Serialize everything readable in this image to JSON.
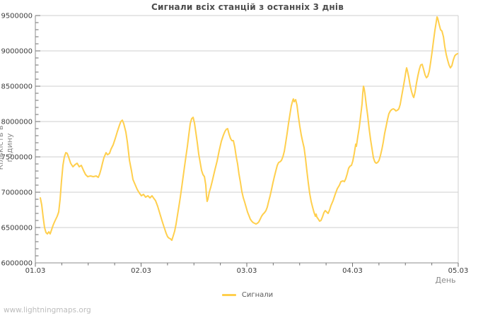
{
  "title": "Сигнали всіх станцій з останніх 3 днів",
  "axes": {
    "y_label": "Кількість в годину",
    "x_label": "День",
    "y_tick_labels": [
      "6000000",
      "6500000",
      "7000000",
      "7500000",
      "8000000",
      "8500000",
      "9000000",
      "9500000"
    ],
    "x_tick_labels": [
      "01.03",
      "02.03",
      "03.03",
      "04.03",
      "05.03"
    ]
  },
  "legend": {
    "label": "Сигнали",
    "color": "#FFCF4D"
  },
  "watermark": "www.lightningmaps.org",
  "colors": {
    "line": "#FFCF4D",
    "grid": "#CFCFCF",
    "axis": "#8C8C8C",
    "tick": "#6E6E6E",
    "tick_label": "#3C3C3C",
    "title": "#4D4D4D",
    "axis_title": "#8A8A8A",
    "legend_text": "#5A5A5A",
    "watermark": "#BCBCBC",
    "background": "#FFFFFF"
  },
  "chart_data": {
    "type": "line",
    "title": "Сигнали всіх станцій з останніх 3 днів",
    "xlabel": "День",
    "ylabel": "Кількість в годину",
    "x_unit": "days since 01.03 00:00",
    "y_unit": "signals per hour",
    "xlim": [
      0,
      4
    ],
    "ylim": [
      6000000,
      9500000
    ],
    "y_tick_interval": 500000,
    "y_minor_interval": 100000,
    "x_tick_interval": 1,
    "x_minor_interval": 0.25,
    "grid": "horizontal",
    "legend_position": "bottom-center",
    "x_tick_labels": [
      "01.03",
      "02.03",
      "03.03",
      "04.03",
      "05.03"
    ],
    "series": [
      {
        "name": "Сигнали",
        "color": "#FFCF4D",
        "value_scale": 1000000,
        "points": [
          [
            0.047,
            6.92
          ],
          [
            0.06,
            6.82
          ],
          [
            0.074,
            6.64
          ],
          [
            0.087,
            6.5
          ],
          [
            0.1,
            6.43
          ],
          [
            0.114,
            6.41
          ],
          [
            0.127,
            6.44
          ],
          [
            0.14,
            6.41
          ],
          [
            0.154,
            6.47
          ],
          [
            0.167,
            6.53
          ],
          [
            0.181,
            6.58
          ],
          [
            0.194,
            6.62
          ],
          [
            0.207,
            6.66
          ],
          [
            0.221,
            6.72
          ],
          [
            0.234,
            6.9
          ],
          [
            0.247,
            7.15
          ],
          [
            0.261,
            7.38
          ],
          [
            0.274,
            7.5
          ],
          [
            0.288,
            7.56
          ],
          [
            0.301,
            7.55
          ],
          [
            0.314,
            7.5
          ],
          [
            0.334,
            7.41
          ],
          [
            0.355,
            7.36
          ],
          [
            0.375,
            7.39
          ],
          [
            0.395,
            7.41
          ],
          [
            0.415,
            7.36
          ],
          [
            0.435,
            7.38
          ],
          [
            0.455,
            7.31
          ],
          [
            0.475,
            7.25
          ],
          [
            0.495,
            7.22
          ],
          [
            0.522,
            7.23
          ],
          [
            0.548,
            7.22
          ],
          [
            0.575,
            7.23
          ],
          [
            0.595,
            7.21
          ],
          [
            0.609,
            7.26
          ],
          [
            0.622,
            7.33
          ],
          [
            0.635,
            7.41
          ],
          [
            0.649,
            7.49
          ],
          [
            0.669,
            7.56
          ],
          [
            0.682,
            7.53
          ],
          [
            0.702,
            7.55
          ],
          [
            0.716,
            7.61
          ],
          [
            0.736,
            7.67
          ],
          [
            0.756,
            7.76
          ],
          [
            0.776,
            7.86
          ],
          [
            0.796,
            7.95
          ],
          [
            0.809,
            8.0
          ],
          [
            0.823,
            8.02
          ],
          [
            0.836,
            7.97
          ],
          [
            0.856,
            7.85
          ],
          [
            0.87,
            7.71
          ],
          [
            0.89,
            7.45
          ],
          [
            0.91,
            7.3
          ],
          [
            0.923,
            7.18
          ],
          [
            0.943,
            7.11
          ],
          [
            0.963,
            7.04
          ],
          [
            0.983,
            6.99
          ],
          [
            1.003,
            6.95
          ],
          [
            1.023,
            6.97
          ],
          [
            1.043,
            6.93
          ],
          [
            1.064,
            6.95
          ],
          [
            1.084,
            6.92
          ],
          [
            1.104,
            6.95
          ],
          [
            1.117,
            6.92
          ],
          [
            1.137,
            6.88
          ],
          [
            1.157,
            6.8
          ],
          [
            1.177,
            6.7
          ],
          [
            1.197,
            6.6
          ],
          [
            1.217,
            6.51
          ],
          [
            1.237,
            6.42
          ],
          [
            1.251,
            6.37
          ],
          [
            1.264,
            6.35
          ],
          [
            1.278,
            6.34
          ],
          [
            1.291,
            6.32
          ],
          [
            1.304,
            6.38
          ],
          [
            1.318,
            6.45
          ],
          [
            1.331,
            6.55
          ],
          [
            1.344,
            6.67
          ],
          [
            1.358,
            6.8
          ],
          [
            1.371,
            6.93
          ],
          [
            1.385,
            7.08
          ],
          [
            1.398,
            7.22
          ],
          [
            1.411,
            7.36
          ],
          [
            1.425,
            7.51
          ],
          [
            1.438,
            7.65
          ],
          [
            1.452,
            7.82
          ],
          [
            1.465,
            7.97
          ],
          [
            1.478,
            8.04
          ],
          [
            1.492,
            8.06
          ],
          [
            1.505,
            7.98
          ],
          [
            1.518,
            7.85
          ],
          [
            1.532,
            7.7
          ],
          [
            1.545,
            7.54
          ],
          [
            1.559,
            7.42
          ],
          [
            1.572,
            7.31
          ],
          [
            1.585,
            7.25
          ],
          [
            1.599,
            7.22
          ],
          [
            1.612,
            7.1
          ],
          [
            1.619,
            6.95
          ],
          [
            1.625,
            6.87
          ],
          [
            1.632,
            6.9
          ],
          [
            1.645,
            7.0
          ],
          [
            1.659,
            7.07
          ],
          [
            1.672,
            7.15
          ],
          [
            1.686,
            7.24
          ],
          [
            1.699,
            7.32
          ],
          [
            1.719,
            7.44
          ],
          [
            1.739,
            7.59
          ],
          [
            1.759,
            7.72
          ],
          [
            1.779,
            7.81
          ],
          [
            1.793,
            7.86
          ],
          [
            1.806,
            7.89
          ],
          [
            1.819,
            7.9
          ],
          [
            1.833,
            7.82
          ],
          [
            1.846,
            7.76
          ],
          [
            1.859,
            7.73
          ],
          [
            1.873,
            7.73
          ],
          [
            1.886,
            7.64
          ],
          [
            1.9,
            7.5
          ],
          [
            1.913,
            7.4
          ],
          [
            1.926,
            7.26
          ],
          [
            1.94,
            7.14
          ],
          [
            1.953,
            7.01
          ],
          [
            1.967,
            6.92
          ],
          [
            1.98,
            6.86
          ],
          [
            1.993,
            6.79
          ],
          [
            2.007,
            6.72
          ],
          [
            2.02,
            6.67
          ],
          [
            2.033,
            6.62
          ],
          [
            2.047,
            6.59
          ],
          [
            2.06,
            6.57
          ],
          [
            2.074,
            6.56
          ],
          [
            2.087,
            6.55
          ],
          [
            2.1,
            6.56
          ],
          [
            2.114,
            6.58
          ],
          [
            2.127,
            6.62
          ],
          [
            2.14,
            6.66
          ],
          [
            2.154,
            6.69
          ],
          [
            2.167,
            6.71
          ],
          [
            2.181,
            6.74
          ],
          [
            2.194,
            6.79
          ],
          [
            2.207,
            6.87
          ],
          [
            2.221,
            6.95
          ],
          [
            2.234,
            7.04
          ],
          [
            2.247,
            7.13
          ],
          [
            2.261,
            7.22
          ],
          [
            2.274,
            7.3
          ],
          [
            2.288,
            7.38
          ],
          [
            2.301,
            7.42
          ],
          [
            2.314,
            7.43
          ],
          [
            2.328,
            7.45
          ],
          [
            2.341,
            7.5
          ],
          [
            2.355,
            7.58
          ],
          [
            2.368,
            7.7
          ],
          [
            2.381,
            7.83
          ],
          [
            2.395,
            7.98
          ],
          [
            2.408,
            8.1
          ],
          [
            2.421,
            8.22
          ],
          [
            2.435,
            8.3
          ],
          [
            2.441,
            8.32
          ],
          [
            2.448,
            8.28
          ],
          [
            2.462,
            8.31
          ],
          [
            2.475,
            8.23
          ],
          [
            2.488,
            8.07
          ],
          [
            2.502,
            7.93
          ],
          [
            2.515,
            7.81
          ],
          [
            2.528,
            7.72
          ],
          [
            2.542,
            7.63
          ],
          [
            2.555,
            7.48
          ],
          [
            2.569,
            7.29
          ],
          [
            2.582,
            7.13
          ],
          [
            2.595,
            6.98
          ],
          [
            2.609,
            6.87
          ],
          [
            2.622,
            6.79
          ],
          [
            2.635,
            6.72
          ],
          [
            2.649,
            6.66
          ],
          [
            2.656,
            6.69
          ],
          [
            2.662,
            6.65
          ],
          [
            2.676,
            6.62
          ],
          [
            2.689,
            6.59
          ],
          [
            2.702,
            6.6
          ],
          [
            2.716,
            6.65
          ],
          [
            2.729,
            6.71
          ],
          [
            2.742,
            6.74
          ],
          [
            2.756,
            6.72
          ],
          [
            2.769,
            6.7
          ],
          [
            2.783,
            6.75
          ],
          [
            2.796,
            6.81
          ],
          [
            2.816,
            6.88
          ],
          [
            2.836,
            6.97
          ],
          [
            2.856,
            7.05
          ],
          [
            2.876,
            7.1
          ],
          [
            2.89,
            7.15
          ],
          [
            2.91,
            7.16
          ],
          [
            2.923,
            7.15
          ],
          [
            2.936,
            7.19
          ],
          [
            2.95,
            7.26
          ],
          [
            2.963,
            7.34
          ],
          [
            2.977,
            7.37
          ],
          [
            2.99,
            7.38
          ],
          [
            3.003,
            7.44
          ],
          [
            3.017,
            7.55
          ],
          [
            3.03,
            7.68
          ],
          [
            3.037,
            7.65
          ],
          [
            3.05,
            7.79
          ],
          [
            3.064,
            7.92
          ],
          [
            3.077,
            8.08
          ],
          [
            3.09,
            8.25
          ],
          [
            3.097,
            8.4
          ],
          [
            3.104,
            8.5
          ],
          [
            3.11,
            8.47
          ],
          [
            3.117,
            8.4
          ],
          [
            3.13,
            8.24
          ],
          [
            3.144,
            8.08
          ],
          [
            3.157,
            7.9
          ],
          [
            3.171,
            7.74
          ],
          [
            3.184,
            7.62
          ],
          [
            3.197,
            7.49
          ],
          [
            3.211,
            7.43
          ],
          [
            3.224,
            7.41
          ],
          [
            3.237,
            7.42
          ],
          [
            3.251,
            7.45
          ],
          [
            3.264,
            7.52
          ],
          [
            3.278,
            7.61
          ],
          [
            3.291,
            7.71
          ],
          [
            3.304,
            7.83
          ],
          [
            3.318,
            7.93
          ],
          [
            3.331,
            8.03
          ],
          [
            3.344,
            8.11
          ],
          [
            3.358,
            8.15
          ],
          [
            3.371,
            8.17
          ],
          [
            3.385,
            8.18
          ],
          [
            3.398,
            8.17
          ],
          [
            3.411,
            8.15
          ],
          [
            3.425,
            8.16
          ],
          [
            3.438,
            8.18
          ],
          [
            3.451,
            8.24
          ],
          [
            3.465,
            8.36
          ],
          [
            3.478,
            8.47
          ],
          [
            3.492,
            8.59
          ],
          [
            3.505,
            8.71
          ],
          [
            3.512,
            8.76
          ],
          [
            3.518,
            8.73
          ],
          [
            3.532,
            8.63
          ],
          [
            3.545,
            8.51
          ],
          [
            3.559,
            8.42
          ],
          [
            3.572,
            8.36
          ],
          [
            3.579,
            8.34
          ],
          [
            3.592,
            8.42
          ],
          [
            3.605,
            8.54
          ],
          [
            3.619,
            8.65
          ],
          [
            3.632,
            8.74
          ],
          [
            3.645,
            8.8
          ],
          [
            3.659,
            8.81
          ],
          [
            3.672,
            8.74
          ],
          [
            3.686,
            8.66
          ],
          [
            3.699,
            8.62
          ],
          [
            3.712,
            8.64
          ],
          [
            3.726,
            8.71
          ],
          [
            3.739,
            8.84
          ],
          [
            3.753,
            8.99
          ],
          [
            3.766,
            9.14
          ],
          [
            3.779,
            9.29
          ],
          [
            3.793,
            9.42
          ],
          [
            3.799,
            9.48
          ],
          [
            3.806,
            9.46
          ],
          [
            3.819,
            9.38
          ],
          [
            3.833,
            9.3
          ],
          [
            3.846,
            9.28
          ],
          [
            3.86,
            9.2
          ],
          [
            3.873,
            9.06
          ],
          [
            3.886,
            8.95
          ],
          [
            3.9,
            8.87
          ],
          [
            3.913,
            8.8
          ],
          [
            3.926,
            8.76
          ],
          [
            3.94,
            8.79
          ],
          [
            3.953,
            8.87
          ],
          [
            3.967,
            8.93
          ],
          [
            3.98,
            8.95
          ],
          [
            3.993,
            8.96
          ]
        ]
      }
    ]
  }
}
